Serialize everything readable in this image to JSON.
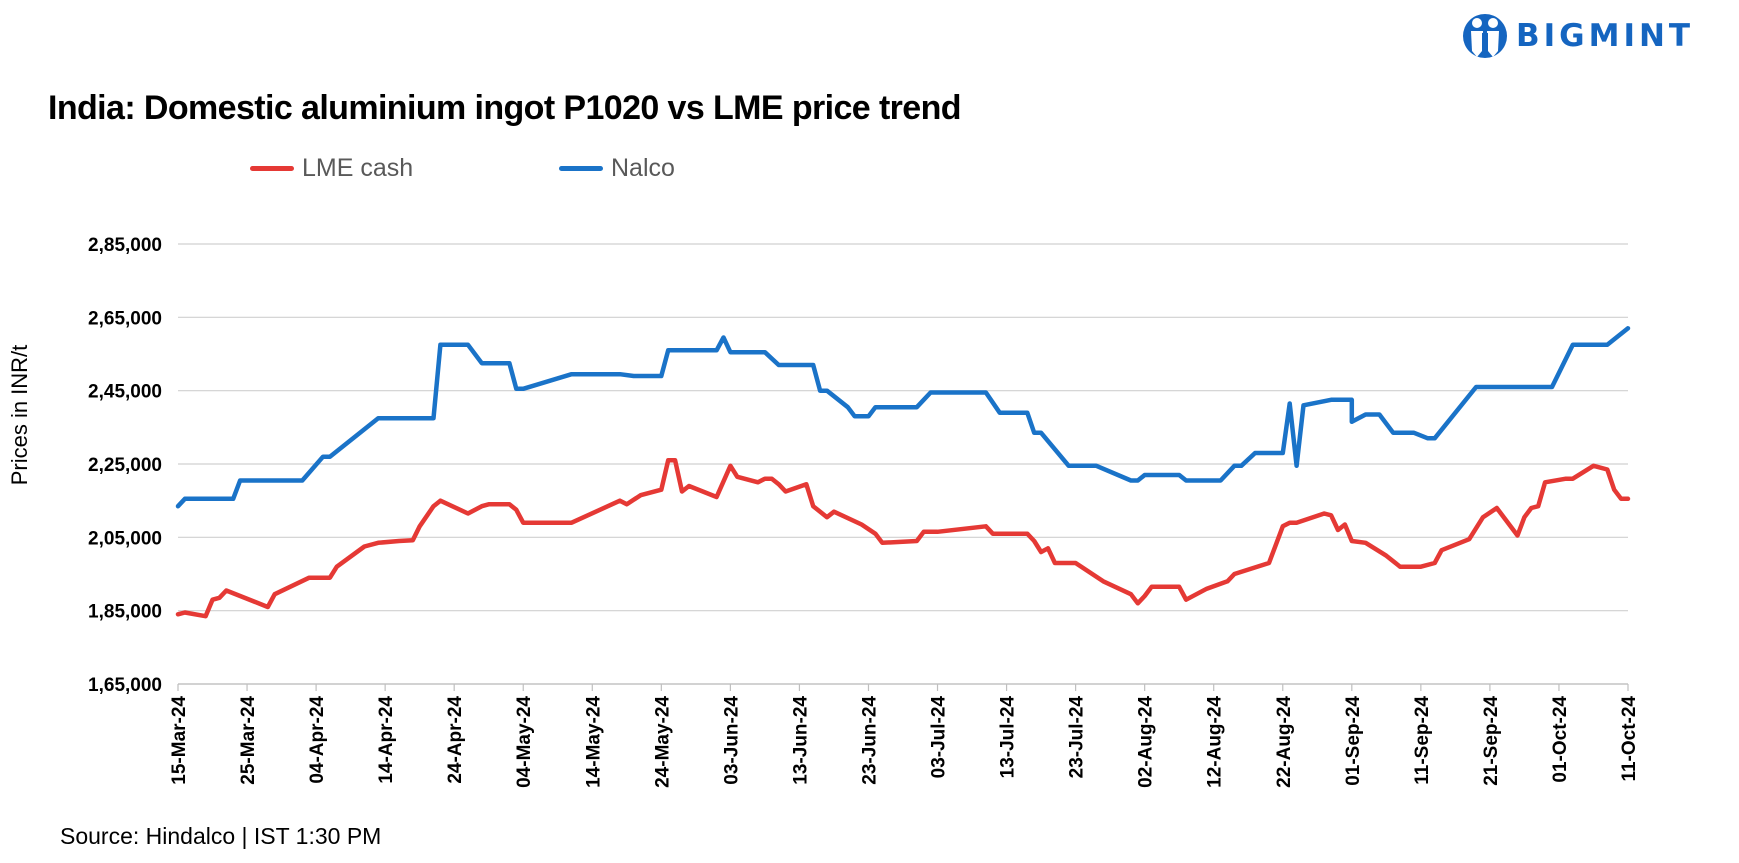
{
  "brand": {
    "name": "BIGMINT",
    "color": "#1565c0",
    "icon": "bigmint-logo-icon"
  },
  "source": "Source: Hindalco | IST 1:30 PM",
  "chart_data": {
    "type": "line",
    "title": "India: Domestic aluminium ingot P1020 vs LME price trend",
    "xlabel": "",
    "ylabel": "Prices in INR/t",
    "ylim": [
      165000,
      285000
    ],
    "yticks": [
      165000,
      185000,
      205000,
      225000,
      245000,
      265000,
      285000
    ],
    "ytick_labels": [
      "1,65,000",
      "1,85,000",
      "2,05,000",
      "2,25,000",
      "2,45,000",
      "2,65,000",
      "2,85,000"
    ],
    "xlim": [
      "2024-03-15",
      "2024-10-11"
    ],
    "xticks": [
      "2024-03-15",
      "2024-03-25",
      "2024-04-04",
      "2024-04-14",
      "2024-04-24",
      "2024-05-04",
      "2024-05-14",
      "2024-05-24",
      "2024-06-03",
      "2024-06-13",
      "2024-06-23",
      "2024-07-03",
      "2024-07-13",
      "2024-07-23",
      "2024-08-02",
      "2024-08-12",
      "2024-08-22",
      "2024-09-01",
      "2024-09-11",
      "2024-09-21",
      "2024-10-01",
      "2024-10-11"
    ],
    "xtick_labels": [
      "15-Mar-24",
      "25-Mar-24",
      "04-Apr-24",
      "14-Apr-24",
      "24-Apr-24",
      "04-May-24",
      "14-May-24",
      "24-May-24",
      "03-Jun-24",
      "13-Jun-24",
      "23-Jun-24",
      "03-Jul-24",
      "13-Jul-24",
      "23-Jul-24",
      "02-Aug-24",
      "12-Aug-24",
      "22-Aug-24",
      "01-Sep-24",
      "11-Sep-24",
      "21-Sep-24",
      "01-Oct-24",
      "11-Oct-24"
    ],
    "grid": true,
    "legend_position": "top-left",
    "series": [
      {
        "name": "LME cash",
        "color": "#e53935",
        "points": [
          [
            "2024-03-15",
            184000
          ],
          [
            "2024-03-16",
            184500
          ],
          [
            "2024-03-19",
            183500
          ],
          [
            "2024-03-20",
            188000
          ],
          [
            "2024-03-21",
            188500
          ],
          [
            "2024-03-22",
            190500
          ],
          [
            "2024-03-26",
            187500
          ],
          [
            "2024-03-28",
            186000
          ],
          [
            "2024-03-29",
            189500
          ],
          [
            "2024-04-03",
            194000
          ],
          [
            "2024-04-06",
            194000
          ],
          [
            "2024-04-07",
            197000
          ],
          [
            "2024-04-11",
            202500
          ],
          [
            "2024-04-13",
            203500
          ],
          [
            "2024-04-16",
            204000
          ],
          [
            "2024-04-18",
            204200
          ],
          [
            "2024-04-19",
            208000
          ],
          [
            "2024-04-21",
            213500
          ],
          [
            "2024-04-22",
            215000
          ],
          [
            "2024-04-26",
            211500
          ],
          [
            "2024-04-28",
            213500
          ],
          [
            "2024-04-29",
            214000
          ],
          [
            "2024-05-02",
            214000
          ],
          [
            "2024-05-03",
            212500
          ],
          [
            "2024-05-04",
            209000
          ],
          [
            "2024-05-11",
            209000
          ],
          [
            "2024-05-18",
            215000
          ],
          [
            "2024-05-19",
            214000
          ],
          [
            "2024-05-21",
            216500
          ],
          [
            "2024-05-24",
            218000
          ],
          [
            "2024-05-25",
            226000
          ],
          [
            "2024-05-26",
            226000
          ],
          [
            "2024-05-27",
            217500
          ],
          [
            "2024-05-28",
            219000
          ],
          [
            "2024-06-01",
            216000
          ],
          [
            "2024-06-03",
            224500
          ],
          [
            "2024-06-04",
            221500
          ],
          [
            "2024-06-07",
            220000
          ],
          [
            "2024-06-08",
            221000
          ],
          [
            "2024-06-09",
            221000
          ],
          [
            "2024-06-10",
            219500
          ],
          [
            "2024-06-11",
            217500
          ],
          [
            "2024-06-14",
            219500
          ],
          [
            "2024-06-15",
            213500
          ],
          [
            "2024-06-17",
            210500
          ],
          [
            "2024-06-18",
            212000
          ],
          [
            "2024-06-22",
            208500
          ],
          [
            "2024-06-24",
            206000
          ],
          [
            "2024-06-25",
            203500
          ],
          [
            "2024-06-30",
            204000
          ],
          [
            "2024-07-01",
            206500
          ],
          [
            "2024-07-03",
            206500
          ],
          [
            "2024-07-10",
            208000
          ],
          [
            "2024-07-11",
            206000
          ],
          [
            "2024-07-16",
            206000
          ],
          [
            "2024-07-17",
            204000
          ],
          [
            "2024-07-18",
            201000
          ],
          [
            "2024-07-19",
            202000
          ],
          [
            "2024-07-20",
            198000
          ],
          [
            "2024-07-23",
            198000
          ],
          [
            "2024-07-27",
            193000
          ],
          [
            "2024-07-31",
            189500
          ],
          [
            "2024-08-01",
            187000
          ],
          [
            "2024-08-02",
            189000
          ],
          [
            "2024-08-03",
            191500
          ],
          [
            "2024-08-07",
            191500
          ],
          [
            "2024-08-08",
            188000
          ],
          [
            "2024-08-11",
            191000
          ],
          [
            "2024-08-14",
            193000
          ],
          [
            "2024-08-15",
            195000
          ],
          [
            "2024-08-20",
            198000
          ],
          [
            "2024-08-22",
            208000
          ],
          [
            "2024-08-23",
            209000
          ],
          [
            "2024-08-24",
            209000
          ],
          [
            "2024-08-28",
            211500
          ],
          [
            "2024-08-29",
            211000
          ],
          [
            "2024-08-30",
            207000
          ],
          [
            "2024-08-31",
            208500
          ],
          [
            "2024-09-01",
            204000
          ],
          [
            "2024-09-03",
            203500
          ],
          [
            "2024-09-06",
            200000
          ],
          [
            "2024-09-08",
            197000
          ],
          [
            "2024-09-11",
            197000
          ],
          [
            "2024-09-13",
            198000
          ],
          [
            "2024-09-14",
            201500
          ],
          [
            "2024-09-18",
            204500
          ],
          [
            "2024-09-20",
            210500
          ],
          [
            "2024-09-22",
            213000
          ],
          [
            "2024-09-25",
            205500
          ],
          [
            "2024-09-26",
            210500
          ],
          [
            "2024-09-27",
            213000
          ],
          [
            "2024-09-28",
            213500
          ],
          [
            "2024-09-29",
            220000
          ],
          [
            "2024-10-02",
            221000
          ],
          [
            "2024-10-03",
            221000
          ],
          [
            "2024-10-06",
            224500
          ],
          [
            "2024-10-08",
            223500
          ],
          [
            "2024-10-09",
            218000
          ],
          [
            "2024-10-10",
            215500
          ],
          [
            "2024-10-11",
            215500
          ]
        ]
      },
      {
        "name": "Nalco",
        "color": "#1a73c8",
        "points": [
          [
            "2024-03-15",
            213500
          ],
          [
            "2024-03-16",
            215500
          ],
          [
            "2024-03-23",
            215500
          ],
          [
            "2024-03-24",
            220500
          ],
          [
            "2024-04-02",
            220500
          ],
          [
            "2024-04-05",
            227000
          ],
          [
            "2024-04-06",
            227000
          ],
          [
            "2024-04-10",
            233000
          ],
          [
            "2024-04-13",
            237500
          ],
          [
            "2024-04-21",
            237500
          ],
          [
            "2024-04-22",
            257500
          ],
          [
            "2024-04-26",
            257500
          ],
          [
            "2024-04-28",
            252500
          ],
          [
            "2024-05-02",
            252500
          ],
          [
            "2024-05-03",
            245500
          ],
          [
            "2024-05-04",
            245500
          ],
          [
            "2024-05-11",
            249500
          ],
          [
            "2024-05-18",
            249500
          ],
          [
            "2024-05-20",
            249000
          ],
          [
            "2024-05-24",
            249000
          ],
          [
            "2024-05-25",
            256000
          ],
          [
            "2024-06-01",
            256000
          ],
          [
            "2024-06-02",
            259500
          ],
          [
            "2024-06-03",
            255500
          ],
          [
            "2024-06-08",
            255500
          ],
          [
            "2024-06-10",
            252000
          ],
          [
            "2024-06-15",
            252000
          ],
          [
            "2024-06-16",
            245000
          ],
          [
            "2024-06-17",
            245000
          ],
          [
            "2024-06-20",
            240500
          ],
          [
            "2024-06-21",
            238000
          ],
          [
            "2024-06-23",
            238000
          ],
          [
            "2024-06-24",
            240500
          ],
          [
            "2024-06-30",
            240500
          ],
          [
            "2024-07-02",
            244500
          ],
          [
            "2024-07-10",
            244500
          ],
          [
            "2024-07-12",
            239000
          ],
          [
            "2024-07-16",
            239000
          ],
          [
            "2024-07-17",
            233500
          ],
          [
            "2024-07-18",
            233500
          ],
          [
            "2024-07-22",
            224500
          ],
          [
            "2024-07-26",
            224500
          ],
          [
            "2024-07-31",
            220500
          ],
          [
            "2024-08-01",
            220500
          ],
          [
            "2024-08-02",
            222000
          ],
          [
            "2024-08-07",
            222000
          ],
          [
            "2024-08-08",
            220500
          ],
          [
            "2024-08-13",
            220500
          ],
          [
            "2024-08-15",
            224500
          ],
          [
            "2024-08-16",
            224500
          ],
          [
            "2024-08-18",
            228000
          ],
          [
            "2024-08-22",
            228000
          ],
          [
            "2024-08-23",
            241500
          ],
          [
            "2024-08-24",
            224500
          ],
          [
            "2024-08-25",
            241000
          ],
          [
            "2024-08-29",
            242500
          ],
          [
            "2024-09-01",
            242500
          ],
          [
            "2024-09-01",
            236500
          ],
          [
            "2024-09-03",
            238500
          ],
          [
            "2024-09-05",
            238500
          ],
          [
            "2024-09-07",
            233500
          ],
          [
            "2024-09-10",
            233500
          ],
          [
            "2024-09-12",
            232000
          ],
          [
            "2024-09-13",
            232000
          ],
          [
            "2024-09-19",
            246000
          ],
          [
            "2024-09-30",
            246000
          ],
          [
            "2024-10-03",
            257500
          ],
          [
            "2024-10-08",
            257500
          ],
          [
            "2024-10-11",
            262000
          ]
        ]
      }
    ]
  }
}
